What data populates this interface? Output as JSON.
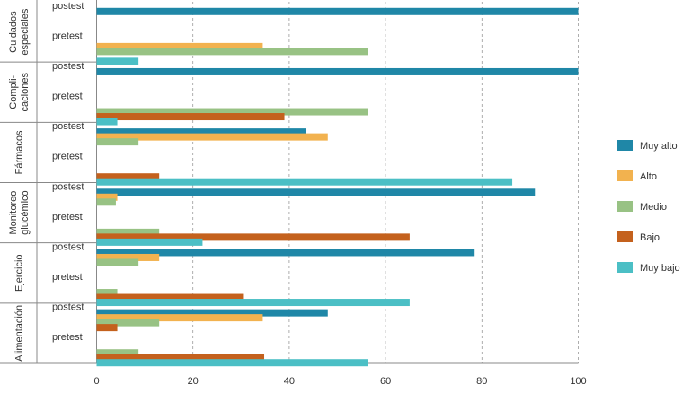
{
  "chart_data": {
    "type": "bar",
    "orientation": "horizontal",
    "stacked": false,
    "xlim": [
      0,
      100
    ],
    "x_ticks": [
      0,
      20,
      40,
      60,
      80,
      100
    ],
    "grid": "vertical-dashed",
    "legend_position": "right",
    "groups": [
      {
        "label": "Cuidados especiales",
        "label_lines": [
          "Cuidados",
          "especiales"
        ],
        "phases": [
          {
            "label": "postest",
            "values": {
              "Muy alto": 100,
              "Alto": 0,
              "Medio": 0,
              "Bajo": 0,
              "Muy bajo": 0
            }
          },
          {
            "label": "pretest",
            "values": {
              "Muy alto": 0,
              "Alto": 34.5,
              "Medio": 56.3,
              "Bajo": 0,
              "Muy bajo": 8.7
            }
          }
        ]
      },
      {
        "label": "Compli-caciones",
        "label_lines": [
          "Compli-",
          "caciones"
        ],
        "phases": [
          {
            "label": "postest",
            "values": {
              "Muy alto": 100,
              "Alto": 0,
              "Medio": 0,
              "Bajo": 0,
              "Muy bajo": 0
            }
          },
          {
            "label": "pretest",
            "values": {
              "Muy alto": 0,
              "Alto": 0,
              "Medio": 56.3,
              "Bajo": 39,
              "Muy bajo": 4.3
            }
          }
        ]
      },
      {
        "label": "Fármacos",
        "label_lines": [
          "Fármacos"
        ],
        "phases": [
          {
            "label": "postest",
            "values": {
              "Muy alto": 43.5,
              "Alto": 48,
              "Medio": 8.7,
              "Bajo": 0,
              "Muy bajo": 0
            }
          },
          {
            "label": "pretest",
            "values": {
              "Muy alto": 0,
              "Alto": 0,
              "Medio": 0,
              "Bajo": 13,
              "Muy bajo": 86.3
            }
          }
        ]
      },
      {
        "label": "Monitoreo glucémico",
        "label_lines": [
          "Monitoreo",
          "glucémico"
        ],
        "phases": [
          {
            "label": "postest",
            "values": {
              "Muy alto": 91,
              "Alto": 4.3,
              "Medio": 4,
              "Bajo": 0,
              "Muy bajo": 0
            }
          },
          {
            "label": "pretest",
            "values": {
              "Muy alto": 0,
              "Alto": 0,
              "Medio": 13,
              "Bajo": 65,
              "Muy bajo": 22
            }
          }
        ]
      },
      {
        "label": "Ejercicio",
        "label_lines": [
          "Ejercicio"
        ],
        "phases": [
          {
            "label": "postest",
            "values": {
              "Muy alto": 78.3,
              "Alto": 13,
              "Medio": 8.7,
              "Bajo": 0,
              "Muy bajo": 0
            }
          },
          {
            "label": "pretest",
            "values": {
              "Muy alto": 0,
              "Alto": 0,
              "Medio": 4.3,
              "Bajo": 30.4,
              "Muy bajo": 65
            }
          }
        ]
      },
      {
        "label": "Alimentación",
        "label_lines": [
          "Alimentación"
        ],
        "phases": [
          {
            "label": "postest",
            "values": {
              "Muy alto": 48,
              "Alto": 34.5,
              "Medio": 13,
              "Bajo": 4.3,
              "Muy bajo": 0
            }
          },
          {
            "label": "pretest",
            "values": {
              "Muy alto": 0,
              "Alto": 0,
              "Medio": 8.7,
              "Bajo": 34.8,
              "Muy bajo": 56.3
            }
          }
        ]
      }
    ],
    "series": [
      {
        "name": "Muy alto",
        "color": "#1f87a7"
      },
      {
        "name": "Alto",
        "color": "#f2b24f"
      },
      {
        "name": "Medio",
        "color": "#98c284"
      },
      {
        "name": "Bajo",
        "color": "#c4611d"
      },
      {
        "name": "Muy bajo",
        "color": "#4bbfc5"
      }
    ]
  }
}
